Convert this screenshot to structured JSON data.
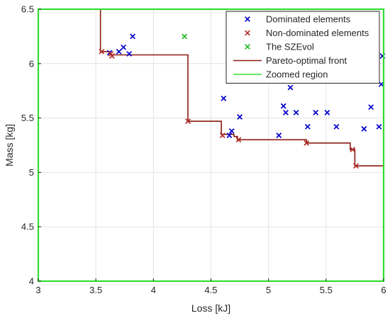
{
  "chart_data": {
    "type": "scatter",
    "xlabel": "Loss [kJ]",
    "ylabel": "Mass [kg]",
    "xlim": [
      3,
      6
    ],
    "ylim": [
      4,
      6.5
    ],
    "xticks": [
      "3",
      "3.5",
      "4",
      "4.5",
      "5",
      "5.5",
      "6"
    ],
    "yticks": [
      "4",
      "4.5",
      "5",
      "5.5",
      "6",
      "6.5"
    ],
    "grid": true,
    "legend_position": "top-right",
    "series": [
      {
        "name": "Dominated elements",
        "kind": "marker",
        "color": "#0000cc",
        "points": [
          [
            3.62,
            6.1
          ],
          [
            3.7,
            6.11
          ],
          [
            3.74,
            6.15
          ],
          [
            3.79,
            6.09
          ],
          [
            3.82,
            6.25
          ],
          [
            4.61,
            5.68
          ],
          [
            4.66,
            5.34
          ],
          [
            4.68,
            5.38
          ],
          [
            4.75,
            5.51
          ],
          [
            5.09,
            5.34
          ],
          [
            5.13,
            5.61
          ],
          [
            5.15,
            5.55
          ],
          [
            5.19,
            5.78
          ],
          [
            5.24,
            5.55
          ],
          [
            5.34,
            5.42
          ],
          [
            5.41,
            5.55
          ],
          [
            5.51,
            5.55
          ],
          [
            5.59,
            5.42
          ],
          [
            5.83,
            5.4
          ],
          [
            5.89,
            5.6
          ],
          [
            5.96,
            5.42
          ],
          [
            5.98,
            5.81
          ],
          [
            5.99,
            6.07
          ]
        ]
      },
      {
        "name": "Non-dominated elements",
        "kind": "marker",
        "color": "#b0302a",
        "points": [
          [
            3.55,
            6.11
          ],
          [
            3.63,
            6.09
          ],
          [
            3.64,
            6.07
          ],
          [
            4.3,
            5.47
          ],
          [
            4.6,
            5.34
          ],
          [
            4.74,
            5.3
          ],
          [
            5.33,
            5.27
          ],
          [
            5.73,
            5.21
          ],
          [
            5.76,
            5.06
          ]
        ]
      },
      {
        "name": "The SZEvol",
        "kind": "marker",
        "color": "#22bb22",
        "points": [
          [
            4.27,
            6.25
          ]
        ]
      },
      {
        "name": "Pareto-optimal front",
        "kind": "line",
        "color": "#8b1a10",
        "points": [
          [
            3.54,
            6.5
          ],
          [
            3.54,
            6.11
          ],
          [
            3.62,
            6.11
          ],
          [
            3.62,
            6.08
          ],
          [
            4.3,
            6.08
          ],
          [
            4.3,
            5.47
          ],
          [
            4.59,
            5.47
          ],
          [
            4.59,
            5.35
          ],
          [
            4.7,
            5.35
          ],
          [
            4.7,
            5.33
          ],
          [
            4.73,
            5.33
          ],
          [
            4.73,
            5.3
          ],
          [
            5.33,
            5.3
          ],
          [
            5.33,
            5.27
          ],
          [
            5.71,
            5.27
          ],
          [
            5.71,
            5.21
          ],
          [
            5.75,
            5.21
          ],
          [
            5.75,
            5.06
          ],
          [
            6.0,
            5.06
          ]
        ]
      },
      {
        "name": "Zoomed region",
        "kind": "rect",
        "color": "#33dd33",
        "x_range": [
          3,
          6
        ],
        "y_range": [
          4,
          6.5
        ]
      }
    ]
  }
}
